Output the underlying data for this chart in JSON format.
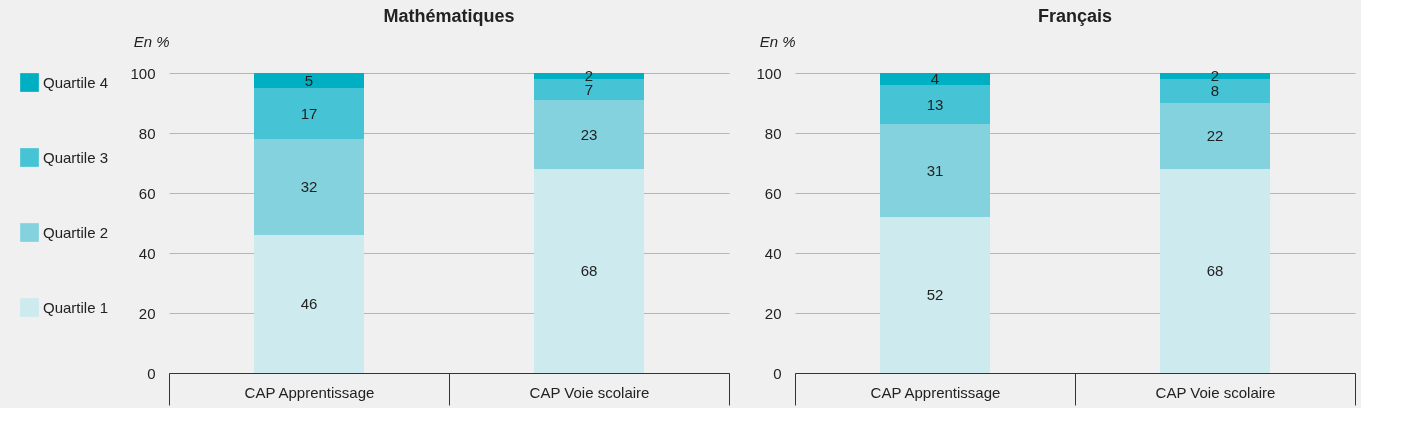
{
  "chart_data": [
    {
      "type": "bar",
      "title": "Mathématiques",
      "ylabel": "En %",
      "stacked": true,
      "data_labels": true,
      "grid": "y",
      "legend": "left",
      "categories": [
        "CAP Apprentissage",
        "CAP Voie scolaire"
      ],
      "series": [
        {
          "name": "Quartile 1",
          "color": "#cdeaef",
          "values": [
            46,
            68
          ]
        },
        {
          "name": "Quartile 2",
          "color": "#84d2de",
          "values": [
            32,
            23
          ]
        },
        {
          "name": "Quartile 3",
          "color": "#46c3d4",
          "values": [
            17,
            7
          ]
        },
        {
          "name": "Quartile 4",
          "color": "#00b0c2",
          "values": [
            5,
            2
          ]
        }
      ],
      "ylim": [
        0,
        100
      ],
      "yticks": [
        0,
        20,
        40,
        60,
        80,
        100
      ]
    },
    {
      "type": "bar",
      "title": "Français",
      "ylabel": "En %",
      "stacked": true,
      "data_labels": true,
      "grid": "y",
      "categories": [
        "CAP Apprentissage",
        "CAP Voie scolaire"
      ],
      "series": [
        {
          "color": "#cdeaef",
          "values": [
            52,
            68
          ]
        },
        {
          "color": "#84d2de",
          "values": [
            31,
            22
          ]
        },
        {
          "color": "#46c3d4",
          "values": [
            13,
            8
          ]
        },
        {
          "color": "#00b0c2",
          "values": [
            4,
            2
          ]
        }
      ],
      "ylim": [
        0,
        100
      ],
      "yticks": [
        0,
        20,
        40,
        60,
        80,
        100
      ]
    }
  ]
}
